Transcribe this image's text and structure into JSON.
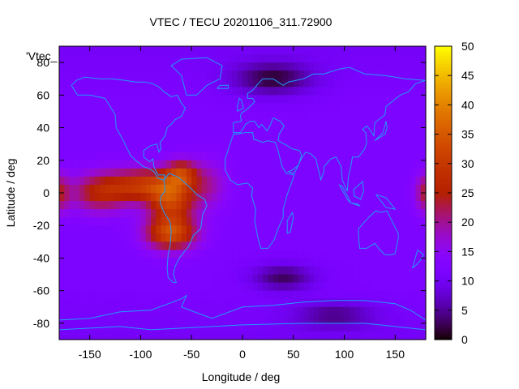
{
  "chart_data": {
    "type": "heatmap",
    "title": "VTEC / TECU 20201106_311.72900",
    "xlabel": "Longitude / deg",
    "ylabel": "Latitude / deg",
    "key_label": "'Vtec_",
    "xlim": [
      -180,
      180
    ],
    "ylim": [
      -90,
      90
    ],
    "zlim": [
      0,
      50
    ],
    "x_ticks": [
      -150,
      -100,
      -50,
      0,
      50,
      100,
      150
    ],
    "y_ticks": [
      -80,
      -60,
      -40,
      -20,
      0,
      20,
      40,
      60,
      80
    ],
    "colorbar_ticks": [
      0,
      5,
      10,
      15,
      20,
      25,
      30,
      35,
      40,
      45,
      50
    ],
    "colormap": "gnuplot-pm3d",
    "coastline_color": "#1f9cff",
    "background_tec": 12,
    "anomalies": [
      {
        "name": "equatorial-anomaly-west",
        "lon": -140,
        "lat": 0,
        "peak": 13,
        "lon_width": 30,
        "lat_width": 12
      },
      {
        "name": "equatorial-anomaly-north",
        "lon": -95,
        "lat": 5,
        "peak": 16,
        "lon_width": 35,
        "lat_width": 10
      },
      {
        "name": "equatorial-anomaly-peru",
        "lon": -70,
        "lat": -5,
        "peak": 18,
        "lon_width": 22,
        "lat_width": 14
      },
      {
        "name": "southern-crest",
        "lon": -70,
        "lat": -25,
        "peak": 20,
        "lon_width": 25,
        "lat_width": 10
      },
      {
        "name": "caribbean-crest",
        "lon": -60,
        "lat": 12,
        "peak": 14,
        "lon_width": 15,
        "lat_width": 8
      },
      {
        "name": "atlantic-tail",
        "lon": -35,
        "lat": 5,
        "peak": 7,
        "lon_width": 20,
        "lat_width": 15
      },
      {
        "name": "dateline-east",
        "lon": 180,
        "lat": 0,
        "peak": 10,
        "lon_width": 10,
        "lat_width": 12
      }
    ],
    "depletions": [
      {
        "name": "arctic-low",
        "lon": 30,
        "lat": 70,
        "depth": 10,
        "lon_width": 40,
        "lat_width": 10
      },
      {
        "name": "southern-low",
        "lon": 40,
        "lat": -52,
        "depth": 9,
        "lon_width": 30,
        "lat_width": 8
      },
      {
        "name": "antarctic-low",
        "lon": 90,
        "lat": -75,
        "depth": 7,
        "lon_width": 40,
        "lat_width": 8
      }
    ]
  }
}
